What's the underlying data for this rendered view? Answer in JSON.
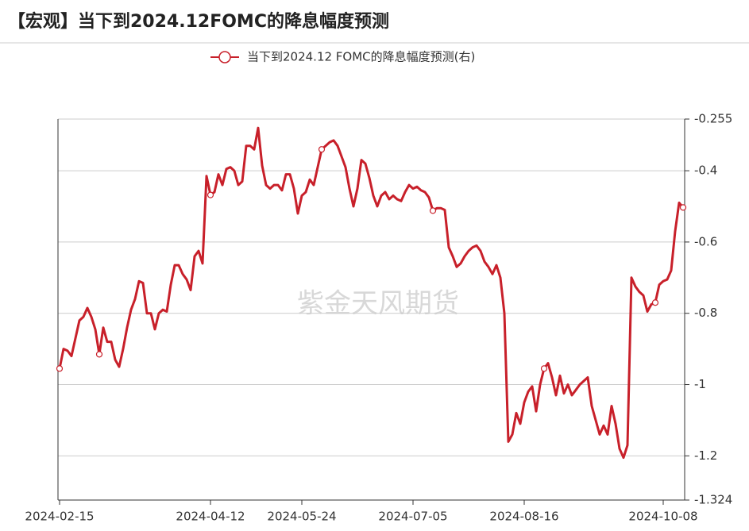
{
  "chart_data": {
    "type": "line",
    "title": "【宏观】当下到2024.12FOMC的降息幅度预测",
    "watermark": "紫金天风期货",
    "categories": [
      "2024-02-15",
      null,
      null,
      null,
      null,
      null,
      null,
      null,
      null,
      null,
      null,
      null,
      null,
      null,
      null,
      null,
      null,
      null,
      null,
      null,
      null,
      null,
      null,
      null,
      null,
      null,
      null,
      null,
      null,
      null,
      null,
      null,
      null,
      null,
      null,
      null,
      null,
      null,
      "2024-04-12",
      null,
      null,
      null,
      null,
      null,
      null,
      null,
      null,
      null,
      null,
      null,
      null,
      null,
      null,
      null,
      null,
      null,
      null,
      null,
      null,
      null,
      null,
      "2024-05-24",
      null,
      null,
      null,
      null,
      null,
      null,
      null,
      null,
      null,
      null,
      null,
      null,
      null,
      null,
      null,
      null,
      null,
      null,
      null,
      null,
      null,
      null,
      null,
      null,
      null,
      null,
      null,
      "2024-07-05",
      null,
      null,
      null,
      null,
      null,
      null,
      null,
      null,
      null,
      null,
      null,
      null,
      null,
      null,
      null,
      null,
      null,
      null,
      null,
      null,
      null,
      null,
      null,
      null,
      null,
      null,
      null,
      "2024-08-16",
      null,
      null,
      null,
      null,
      null,
      null,
      null,
      null,
      null,
      null,
      null,
      null,
      null,
      null,
      null,
      null,
      null,
      null,
      null,
      null,
      null,
      null,
      null,
      null,
      null,
      null,
      null,
      null,
      null,
      null,
      null,
      null,
      null,
      null,
      "2024-10-08",
      null,
      null,
      null,
      null,
      null
    ],
    "series": [
      {
        "name": "当下到2024.12 FOMC的降息幅度预测(右)",
        "color": "#c8202a",
        "axis": "y2",
        "values": [
          -0.955,
          -0.9,
          -0.905,
          -0.92,
          -0.87,
          -0.82,
          -0.81,
          -0.785,
          -0.81,
          -0.845,
          -0.915,
          -0.84,
          -0.88,
          -0.88,
          -0.93,
          -0.95,
          -0.9,
          -0.84,
          -0.79,
          -0.76,
          -0.71,
          -0.715,
          -0.8,
          -0.8,
          -0.845,
          -0.8,
          -0.79,
          -0.795,
          -0.72,
          -0.665,
          -0.665,
          -0.69,
          -0.705,
          -0.735,
          -0.64,
          -0.625,
          -0.66,
          -0.415,
          -0.468,
          -0.46,
          -0.41,
          -0.44,
          -0.395,
          -0.39,
          -0.4,
          -0.44,
          -0.43,
          -0.33,
          -0.33,
          -0.34,
          -0.28,
          -0.385,
          -0.44,
          -0.45,
          -0.44,
          -0.44,
          -0.455,
          -0.41,
          -0.41,
          -0.45,
          -0.52,
          -0.47,
          -0.46,
          -0.425,
          -0.44,
          -0.39,
          -0.34,
          -0.33,
          -0.32,
          -0.315,
          -0.33,
          -0.36,
          -0.39,
          -0.45,
          -0.5,
          -0.45,
          -0.37,
          -0.38,
          -0.42,
          -0.47,
          -0.5,
          -0.47,
          -0.46,
          -0.48,
          -0.47,
          -0.48,
          -0.485,
          -0.46,
          -0.44,
          -0.45,
          -0.445,
          -0.455,
          -0.46,
          -0.475,
          -0.512,
          -0.505,
          -0.505,
          -0.51,
          -0.615,
          -0.64,
          -0.67,
          -0.66,
          -0.64,
          -0.625,
          -0.615,
          -0.61,
          -0.625,
          -0.655,
          -0.67,
          -0.69,
          -0.665,
          -0.7,
          -0.8,
          -1.16,
          -1.14,
          -1.08,
          -1.11,
          -1.05,
          -1.02,
          -1.005,
          -1.075,
          -1.0,
          -0.955,
          -0.94,
          -0.98,
          -1.03,
          -0.975,
          -1.025,
          -1.0,
          -1.03,
          -1.015,
          -1.0,
          -0.99,
          -0.98,
          -1.06,
          -1.1,
          -1.14,
          -1.115,
          -1.14,
          -1.06,
          -1.11,
          -1.18,
          -1.205,
          -1.17,
          -0.7,
          -0.725,
          -0.74,
          -0.75,
          -0.795,
          -0.775,
          -0.77,
          -0.72,
          -0.71,
          -0.705,
          -0.68,
          -0.57,
          -0.49,
          -0.503
        ]
      }
    ],
    "y2lim": [
      -0.255,
      -1.324
    ],
    "y2ticks": [
      -0.255,
      -0.4,
      -0.6,
      -0.8,
      -1,
      -1.2,
      -1.324
    ],
    "grid": true,
    "legend": "top"
  }
}
